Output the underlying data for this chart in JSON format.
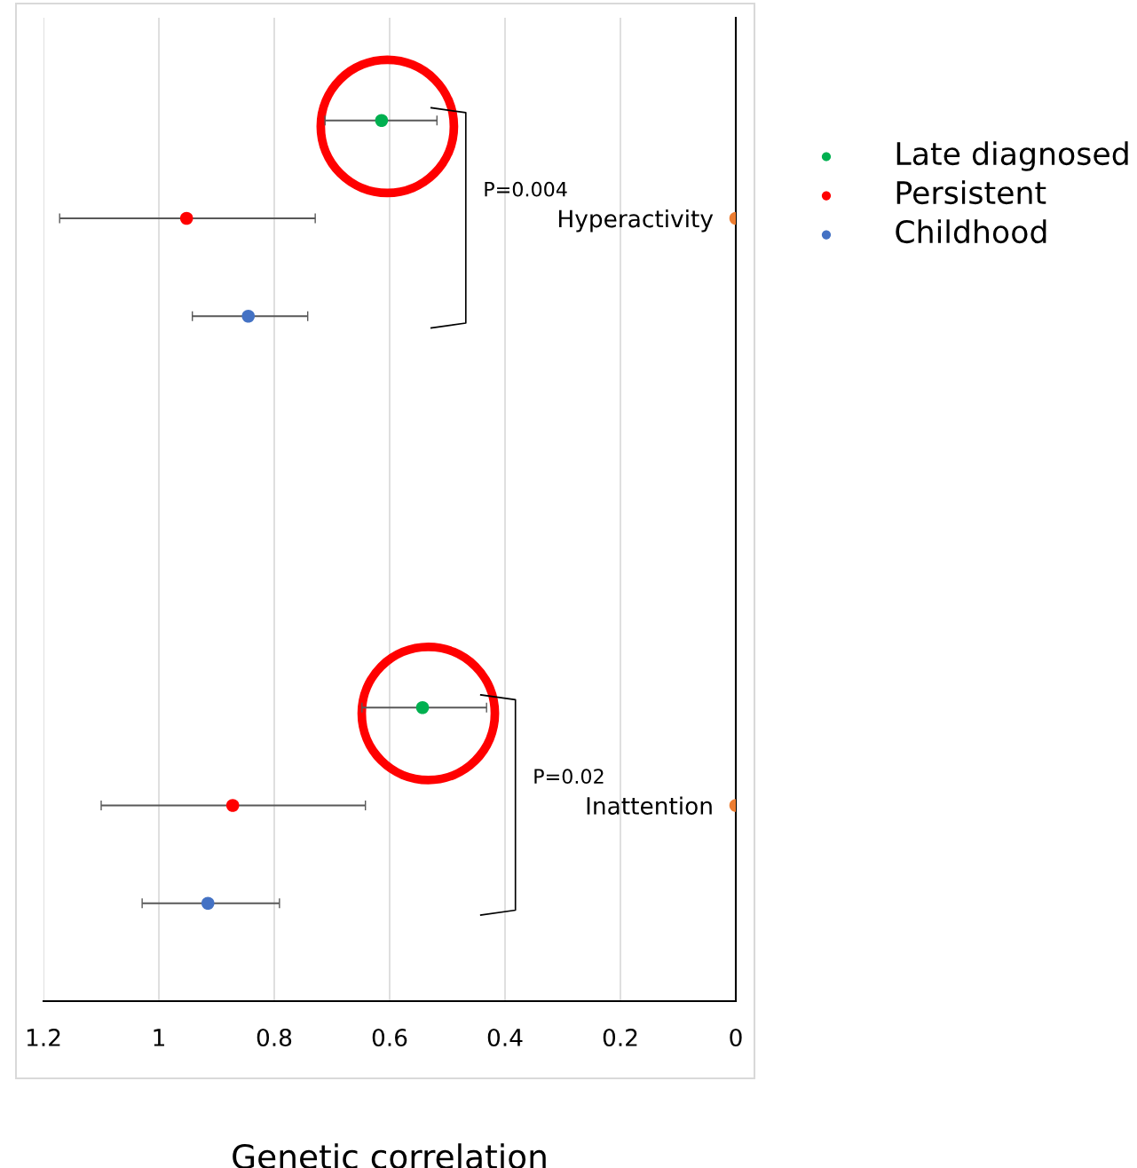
{
  "chart_data": {
    "type": "scatter",
    "orientation": "horizontal",
    "categories": [
      null,
      "Hyperactivity",
      null,
      null,
      null,
      null,
      null,
      "Inattention",
      null
    ],
    "series": [
      {
        "name": "Late diagnosed",
        "color": "#00b050",
        "values": [
          0.614,
          null,
          null,
          null,
          null,
          null,
          0.543,
          null,
          null
        ],
        "errors": [
          [
            0.518,
            0.712
          ],
          null,
          null,
          null,
          null,
          null,
          [
            0.432,
            0.648
          ],
          null,
          null
        ]
      },
      {
        "name": "Persistent",
        "color": "#ff0000",
        "values": [
          null,
          0.952,
          null,
          null,
          null,
          null,
          null,
          0.872,
          null
        ],
        "errors": [
          null,
          [
            0.729,
            1.172
          ],
          null,
          null,
          null,
          null,
          null,
          [
            0.642,
            1.1
          ],
          null
        ]
      },
      {
        "name": "Childhood",
        "color": "#4472c4",
        "values": [
          null,
          null,
          0.845,
          null,
          null,
          null,
          null,
          null,
          0.915
        ],
        "errors": [
          null,
          null,
          [
            0.742,
            0.942
          ],
          null,
          null,
          null,
          null,
          null,
          [
            0.791,
            1.029
          ]
        ]
      },
      {
        "color": "#ed7d31",
        "values": [
          null,
          0,
          null,
          null,
          null,
          null,
          null,
          0,
          null
        ]
      }
    ],
    "xlim": [
      1.2,
      0
    ],
    "xticks": [
      1.2,
      1,
      0.8,
      0.6,
      0.4,
      0.2,
      0
    ],
    "xlabel": "Genetic correlation",
    "annotations": [
      "P=0.004",
      "P=0.02"
    ],
    "grid": "x",
    "legend": "top right",
    "marker": "circle"
  }
}
